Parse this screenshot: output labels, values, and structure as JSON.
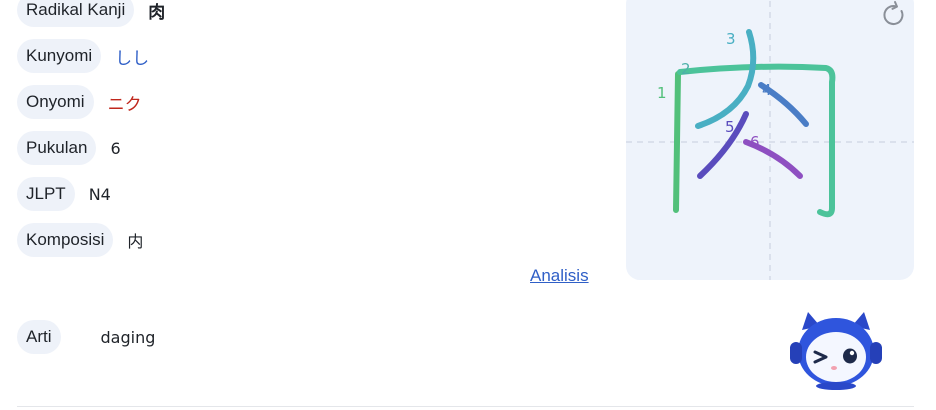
{
  "info": {
    "radikal": {
      "label": "Radikal Kanji",
      "value": "肉"
    },
    "kunyomi": {
      "label": "Kunyomi",
      "value": "しし"
    },
    "onyomi": {
      "label": "Onyomi",
      "value": "ニク"
    },
    "pukulan": {
      "label": "Pukulan",
      "value": "6"
    },
    "jlpt": {
      "label": "JLPT",
      "value": "N4"
    },
    "komposisi": {
      "label": "Komposisi",
      "value": "内"
    }
  },
  "analysis_link": "Analisis",
  "meaning": {
    "label": "Arti",
    "value": "daging"
  },
  "stroke_order": {
    "numbers": [
      "1",
      "2",
      "3",
      "4",
      "5",
      "6"
    ],
    "replay_icon": "refresh-icon"
  },
  "colors": {
    "pill_bg": "#eef2f9",
    "link": "#2f5fc7",
    "onyomi": "#c0271c",
    "kunyomi": "#2f5fc7",
    "panel_bg": "#eef3fb"
  }
}
